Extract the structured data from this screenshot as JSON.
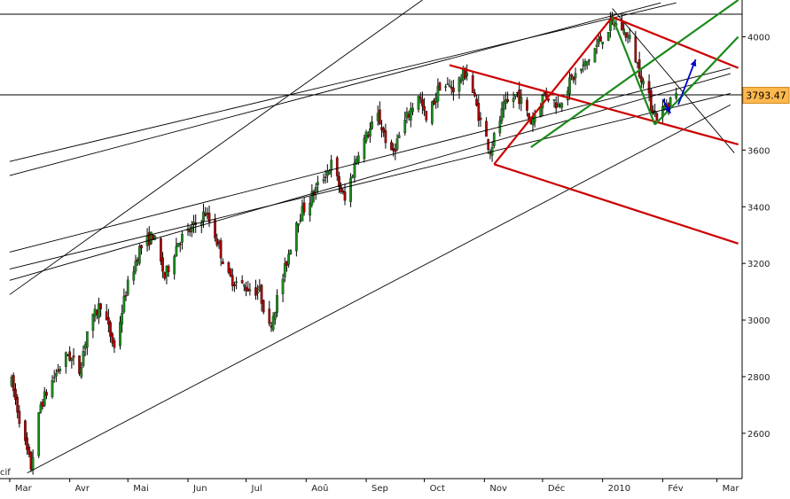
{
  "chart_data": {
    "type": "candlestick",
    "title": "",
    "xlabel": "",
    "ylabel": "",
    "x_tick_labels": [
      "Mar",
      "Avr",
      "Mai",
      "Jun",
      "Jul",
      "Aoû",
      "Sep",
      "Oct",
      "Nov",
      "Déc",
      "2010",
      "Fév",
      "Mar"
    ],
    "y_ticks": [
      2600,
      2800,
      3000,
      3200,
      3400,
      3600,
      3800,
      4000
    ],
    "ylim": [
      2440,
      4130
    ],
    "y_axis_position": "right",
    "last_price_label": "3793.47",
    "corner_fragment": "cif",
    "grid": false,
    "horizontal_levels": [
      4080,
      3795
    ],
    "price_path": [
      [
        "2009-03-02",
        2780
      ],
      [
        "2009-03-09",
        2560
      ],
      [
        "2009-03-12",
        2480
      ],
      [
        "2009-03-17",
        2700
      ],
      [
        "2009-03-24",
        2800
      ],
      [
        "2009-03-31",
        2880
      ],
      [
        "2009-04-06",
        2820
      ],
      [
        "2009-04-10",
        2960
      ],
      [
        "2009-04-17",
        3060
      ],
      [
        "2009-04-24",
        2900
      ],
      [
        "2009-04-30",
        3100
      ],
      [
        "2009-05-07",
        3250
      ],
      [
        "2009-05-14",
        3300
      ],
      [
        "2009-05-20",
        3150
      ],
      [
        "2009-05-27",
        3280
      ],
      [
        "2009-06-03",
        3320
      ],
      [
        "2009-06-10",
        3380
      ],
      [
        "2009-06-15",
        3300
      ],
      [
        "2009-06-22",
        3150
      ],
      [
        "2009-06-29",
        3120
      ],
      [
        "2009-07-08",
        3100
      ],
      [
        "2009-07-13",
        2970
      ],
      [
        "2009-07-20",
        3150
      ],
      [
        "2009-07-27",
        3350
      ],
      [
        "2009-08-05",
        3450
      ],
      [
        "2009-08-14",
        3550
      ],
      [
        "2009-08-21",
        3420
      ],
      [
        "2009-08-28",
        3600
      ],
      [
        "2009-09-07",
        3720
      ],
      [
        "2009-09-14",
        3580
      ],
      [
        "2009-09-21",
        3700
      ],
      [
        "2009-09-28",
        3800
      ],
      [
        "2009-10-02",
        3700
      ],
      [
        "2009-10-09",
        3830
      ],
      [
        "2009-10-16",
        3820
      ],
      [
        "2009-10-23",
        3880
      ],
      [
        "2009-10-30",
        3700
      ],
      [
        "2009-11-04",
        3600
      ],
      [
        "2009-11-11",
        3750
      ],
      [
        "2009-11-18",
        3800
      ],
      [
        "2009-11-25",
        3700
      ],
      [
        "2009-12-02",
        3800
      ],
      [
        "2009-12-09",
        3760
      ],
      [
        "2009-12-16",
        3850
      ],
      [
        "2009-12-23",
        3900
      ],
      [
        "2009-12-30",
        3980
      ],
      [
        "2010-01-06",
        4050
      ],
      [
        "2010-01-11",
        4030
      ],
      [
        "2010-01-15",
        3990
      ],
      [
        "2010-01-20",
        3880
      ],
      [
        "2010-01-26",
        3760
      ],
      [
        "2010-01-29",
        3720
      ],
      [
        "2010-02-03",
        3760
      ],
      [
        "2010-02-05",
        3780
      ],
      [
        "2010-02-08",
        3790
      ]
    ],
    "trendlines": [
      {
        "color": "#000000",
        "from": [
          "2009-03-10",
          2460
        ],
        "to": [
          "2010-03-08",
          3760
        ]
      },
      {
        "color": "#000000",
        "from": [
          "2009-03-01",
          3140
        ],
        "to": [
          "2010-03-08",
          3870
        ]
      },
      {
        "color": "#000000",
        "from": [
          "2009-03-01",
          3240
        ],
        "to": [
          "2010-03-08",
          3890
        ]
      },
      {
        "color": "#000000",
        "from": [
          "2009-03-01",
          3180
        ],
        "to": [
          "2010-03-08",
          3800
        ]
      },
      {
        "color": "#000000",
        "from": [
          "2009-03-01",
          3560
        ],
        "to": [
          "2010-02-08",
          4120
        ]
      },
      {
        "color": "#000000",
        "from": [
          "2009-03-01",
          3510
        ],
        "to": [
          "2010-01-31",
          4120
        ]
      },
      {
        "color": "#000000",
        "from": [
          "2009-03-01",
          3090
        ],
        "to": [
          "2009-09-30",
          4130
        ]
      },
      {
        "color": "#000000",
        "from": [
          "2010-01-06",
          4100
        ],
        "to": [
          "2010-03-10",
          3590
        ]
      },
      {
        "color": "#cc0000",
        "from": [
          "2009-10-14",
          3900
        ],
        "to": [
          "2010-03-12",
          3620
        ]
      },
      {
        "color": "#cc0000",
        "from": [
          "2009-11-06",
          3550
        ],
        "to": [
          "2010-03-12",
          3270
        ]
      },
      {
        "color": "#cc0000",
        "from": [
          "2010-01-06",
          4070
        ],
        "to": [
          "2010-03-12",
          3890
        ]
      },
      {
        "color": "#cc0000",
        "from": [
          "2009-11-06",
          3550
        ],
        "to": [
          "2010-01-06",
          4070
        ]
      },
      {
        "color": "#1a8a1a",
        "from": [
          "2009-11-25",
          3610
        ],
        "to": [
          "2010-03-12",
          4130
        ]
      },
      {
        "color": "#1a8a1a",
        "from": [
          "2010-01-28",
          3690
        ],
        "to": [
          "2010-03-12",
          4000
        ]
      },
      {
        "color": "#1a8a1a",
        "from": [
          "2010-01-06",
          4070
        ],
        "to": [
          "2010-01-28",
          3690
        ]
      }
    ],
    "arrows": [
      {
        "color": "#0000cc",
        "from": [
          "2010-02-01",
          3780
        ],
        "to": [
          "2010-02-05",
          3730
        ]
      },
      {
        "color": "#0000cc",
        "from": [
          "2010-02-09",
          3760
        ],
        "to": [
          "2010-02-18",
          3920
        ]
      }
    ]
  }
}
